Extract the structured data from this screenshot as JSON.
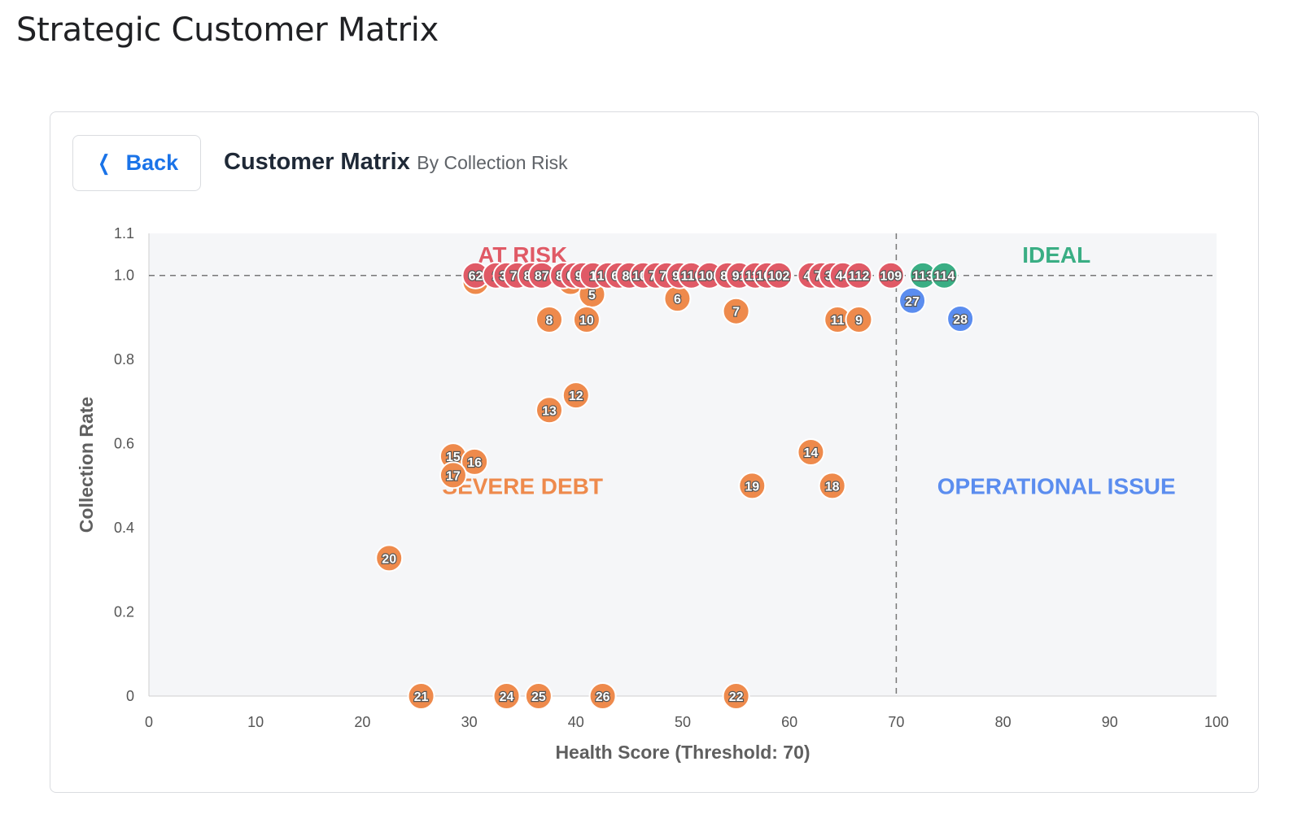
{
  "page": {
    "title": "Strategic Customer Matrix"
  },
  "card": {
    "back_label": "Back",
    "title": "Customer Matrix",
    "subtitle": "By Collection Risk"
  },
  "icons": {
    "back": "chevron-left-icon"
  },
  "chart_data": {
    "type": "scatter",
    "xlabel": "Health Score (Threshold: 70)",
    "ylabel": "Collection Rate",
    "xlim": [
      0,
      100
    ],
    "ylim": [
      0,
      1.1
    ],
    "x_ticks": [
      0,
      10,
      20,
      30,
      40,
      50,
      60,
      70,
      80,
      90,
      100
    ],
    "y_ticks": [
      0,
      0.2,
      0.4,
      0.6,
      0.8,
      1.0,
      1.1
    ],
    "y_tick_labels": [
      "0",
      "0.2",
      "0.4",
      "0.6",
      "0.8",
      "1.0",
      "1.1"
    ],
    "grid": false,
    "threshold_x": 70,
    "threshold_y": 1.0,
    "colors": {
      "at_risk": "#e05a66",
      "severe_debt": "#ee8a4c",
      "operational_issue": "#5b8def",
      "ideal": "#3aae84",
      "plot_background": "#f5f6f8"
    },
    "quadrants": [
      {
        "label": "AT RISK",
        "key": "at_risk",
        "x": 35,
        "y": 1.05
      },
      {
        "label": "IDEAL",
        "key": "ideal",
        "x": 85,
        "y": 1.05
      },
      {
        "label": "SEVERE DEBT",
        "key": "severe_debt",
        "x": 35,
        "y": 0.5
      },
      {
        "label": "OPERATIONAL ISSUE",
        "key": "operational_issue",
        "x": 85,
        "y": 0.5
      }
    ],
    "series": [
      {
        "name": "Severe Debt",
        "key": "severe_debt",
        "points": [
          {
            "label": "4",
            "x": 30.6,
            "y": 0.985
          },
          {
            "label": "3",
            "x": 39.5,
            "y": 0.985
          },
          {
            "label": "5",
            "x": 41.5,
            "y": 0.955
          },
          {
            "label": "6",
            "x": 49.5,
            "y": 0.945
          },
          {
            "label": "7",
            "x": 55.0,
            "y": 0.915
          },
          {
            "label": "8",
            "x": 37.5,
            "y": 0.895
          },
          {
            "label": "10",
            "x": 41.0,
            "y": 0.895
          },
          {
            "label": "11",
            "x": 64.5,
            "y": 0.895
          },
          {
            "label": "9",
            "x": 66.5,
            "y": 0.895
          },
          {
            "label": "12",
            "x": 40.0,
            "y": 0.715
          },
          {
            "label": "13",
            "x": 37.5,
            "y": 0.68
          },
          {
            "label": "14",
            "x": 62.0,
            "y": 0.58
          },
          {
            "label": "15",
            "x": 28.5,
            "y": 0.57
          },
          {
            "label": "16",
            "x": 30.5,
            "y": 0.557
          },
          {
            "label": "17",
            "x": 28.5,
            "y": 0.525
          },
          {
            "label": "19",
            "x": 56.5,
            "y": 0.5
          },
          {
            "label": "18",
            "x": 64.0,
            "y": 0.5
          },
          {
            "label": "20",
            "x": 22.5,
            "y": 0.328
          },
          {
            "label": "21",
            "x": 25.5,
            "y": 0.0
          },
          {
            "label": "24",
            "x": 33.5,
            "y": 0.0
          },
          {
            "label": "25",
            "x": 36.5,
            "y": 0.0
          },
          {
            "label": "26",
            "x": 42.5,
            "y": 0.0
          },
          {
            "label": "22",
            "x": 55.0,
            "y": 0.0
          }
        ]
      },
      {
        "name": "At Risk",
        "key": "at_risk",
        "points": [
          {
            "label": "62",
            "x": 30.6,
            "y": 1.0
          },
          {
            "label": "2",
            "x": 32.5,
            "y": 1.0
          },
          {
            "label": "37",
            "x": 33.5,
            "y": 1.0
          },
          {
            "label": "76",
            "x": 34.5,
            "y": 1.0
          },
          {
            "label": "88",
            "x": 35.8,
            "y": 1.0
          },
          {
            "label": "87",
            "x": 36.8,
            "y": 1.0
          },
          {
            "label": "84",
            "x": 38.8,
            "y": 1.0
          },
          {
            "label": "69",
            "x": 39.8,
            "y": 1.0
          },
          {
            "label": "93",
            "x": 40.6,
            "y": 1.0
          },
          {
            "label": "1",
            "x": 41.6,
            "y": 1.0
          },
          {
            "label": "106",
            "x": 43.0,
            "y": 1.0
          },
          {
            "label": "68",
            "x": 44.0,
            "y": 1.0
          },
          {
            "label": "81",
            "x": 45.0,
            "y": 1.0
          },
          {
            "label": "100",
            "x": 46.3,
            "y": 1.0
          },
          {
            "label": "75",
            "x": 47.5,
            "y": 1.0
          },
          {
            "label": "79",
            "x": 48.5,
            "y": 1.0
          },
          {
            "label": "92",
            "x": 49.7,
            "y": 1.0
          },
          {
            "label": "110",
            "x": 50.8,
            "y": 1.0
          },
          {
            "label": "108",
            "x": 52.5,
            "y": 1.0
          },
          {
            "label": "85",
            "x": 54.2,
            "y": 1.0
          },
          {
            "label": "91",
            "x": 55.3,
            "y": 1.0
          },
          {
            "label": "111",
            "x": 56.8,
            "y": 1.0
          },
          {
            "label": "101",
            "x": 57.9,
            "y": 1.0
          },
          {
            "label": "102",
            "x": 59.0,
            "y": 1.0
          },
          {
            "label": "47",
            "x": 62.0,
            "y": 1.0
          },
          {
            "label": "73",
            "x": 63.0,
            "y": 1.0
          },
          {
            "label": "38",
            "x": 64.0,
            "y": 1.0
          },
          {
            "label": "44",
            "x": 65.0,
            "y": 1.0
          },
          {
            "label": "112",
            "x": 66.5,
            "y": 1.0
          },
          {
            "label": "109",
            "x": 69.5,
            "y": 1.0
          }
        ]
      },
      {
        "name": "Ideal",
        "key": "ideal",
        "points": [
          {
            "label": "113",
            "x": 72.5,
            "y": 1.0
          },
          {
            "label": "114",
            "x": 74.5,
            "y": 1.0
          }
        ]
      },
      {
        "name": "Operational Issue",
        "key": "operational_issue",
        "points": [
          {
            "label": "27",
            "x": 71.5,
            "y": 0.94
          },
          {
            "label": "28",
            "x": 76.0,
            "y": 0.897
          }
        ]
      }
    ]
  }
}
